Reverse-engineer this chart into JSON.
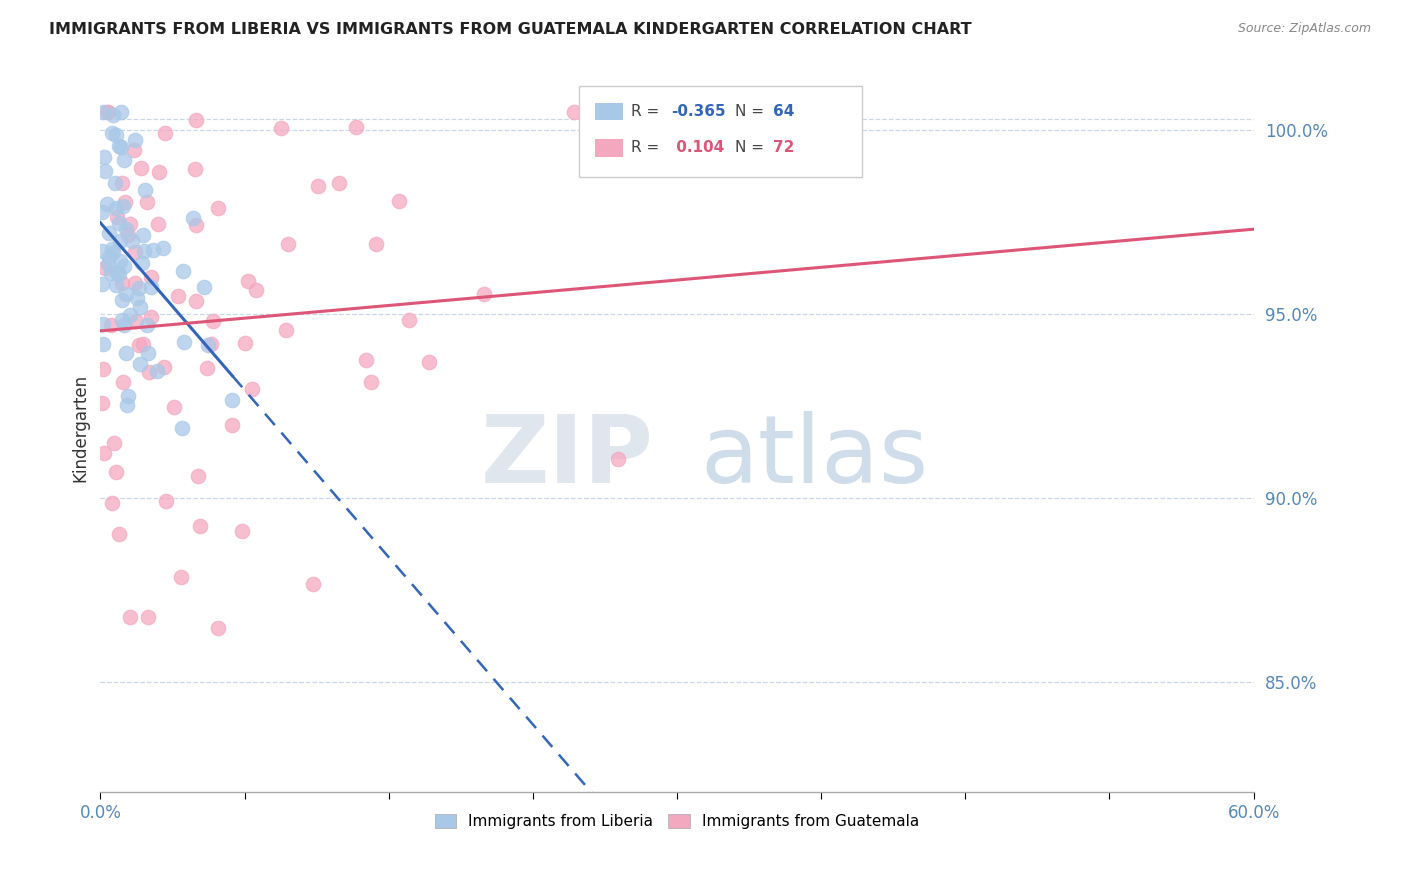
{
  "title": "IMMIGRANTS FROM LIBERIA VS IMMIGRANTS FROM GUATEMALA KINDERGARTEN CORRELATION CHART",
  "source": "Source: ZipAtlas.com",
  "ylabel": "Kindergarten",
  "xmin": 0.0,
  "xmax": 0.6,
  "ymin": 0.82,
  "ymax": 1.018,
  "yticks": [
    0.85,
    0.9,
    0.95,
    1.0
  ],
  "ytick_labels": [
    "85.0%",
    "90.0%",
    "95.0%",
    "100.0%"
  ],
  "watermark_zip": "ZIP",
  "watermark_atlas": "atlas",
  "legend_r1_val": "-0.365",
  "legend_n1": "64",
  "legend_r2_val": "0.104",
  "legend_n2": "72",
  "liberia_color": "#a8c8e8",
  "guatemala_color": "#f4a8c0",
  "liberia_trend_color": "#3366bb",
  "guatemala_trend_color": "#dd5577",
  "R_liberia": -0.365,
  "N_liberia": 64,
  "R_guatemala": 0.104,
  "N_guatemala": 72,
  "grid_color": "#c8d8e8",
  "title_color": "#222222",
  "source_color": "#888888",
  "axis_label_color": "#5588bb",
  "ylabel_color": "#333333"
}
